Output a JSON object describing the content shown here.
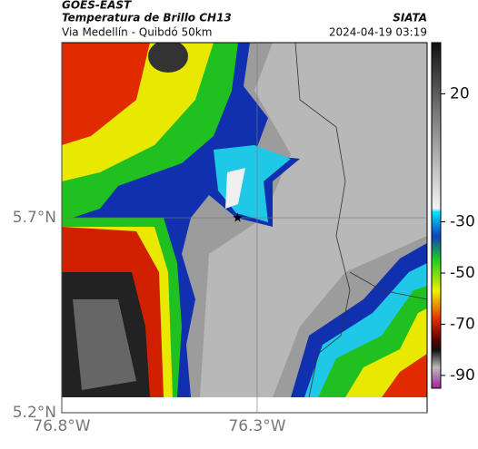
{
  "header": {
    "title": "GOES-EAST",
    "subtitle": "Temperatura de Brillo CH13",
    "region": "Via Medellín - Quibdó 50km",
    "source": "SIATA",
    "datetime": "2024-04-19 03:19"
  },
  "map": {
    "xlim": [
      -76.8,
      -75.865
    ],
    "ylim": [
      5.2,
      6.149
    ],
    "xticks": [
      {
        "value": -76.8,
        "label": "76.8°W"
      },
      {
        "value": -76.3,
        "label": "76.3°W"
      }
    ],
    "yticks": [
      {
        "value": 5.7,
        "label": "5.7°N"
      },
      {
        "value": 5.2,
        "label": "5.2°N"
      }
    ],
    "grid": true,
    "marker": {
      "lon": -76.35,
      "lat": 5.7
    }
  },
  "colorbar": {
    "lim": [
      40,
      -95
    ],
    "ticks": [
      20,
      -30,
      -50,
      -70,
      -90
    ]
  }
}
